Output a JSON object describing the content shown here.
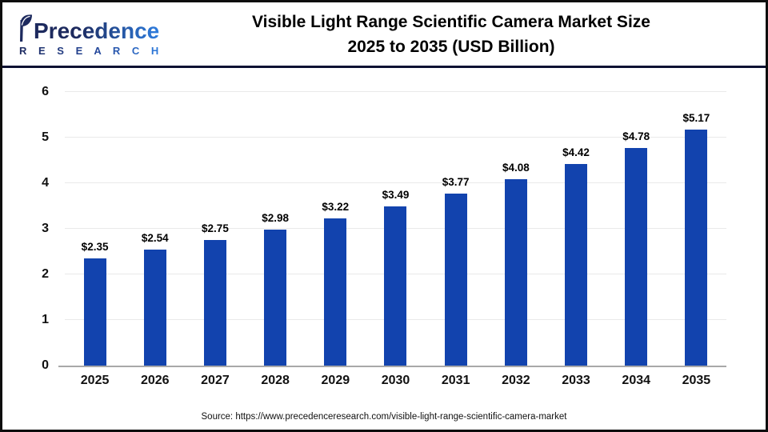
{
  "header": {
    "logo_brand": "Precedence",
    "logo_sub": "R E S E A R C H",
    "title_line1": "Visible Light Range Scientific Camera Market Size",
    "title_line2": "2025 to 2035 (USD Billion)"
  },
  "chart_data": {
    "type": "bar",
    "title": "Visible Light Range Scientific Camera Market Size 2025 to 2035 (USD Billion)",
    "categories": [
      "2025",
      "2026",
      "2027",
      "2028",
      "2029",
      "2030",
      "2031",
      "2032",
      "2033",
      "2034",
      "2035"
    ],
    "values": [
      2.35,
      2.54,
      2.75,
      2.98,
      3.22,
      3.49,
      3.77,
      4.08,
      4.42,
      4.78,
      5.17
    ],
    "value_labels": [
      "$2.35",
      "$2.54",
      "$2.75",
      "$2.98",
      "$3.22",
      "$3.49",
      "$3.77",
      "$4.08",
      "$4.42",
      "$4.78",
      "$5.17"
    ],
    "xlabel": "",
    "ylabel": "",
    "ylim": [
      0,
      6
    ],
    "yticks": [
      0,
      1,
      2,
      3,
      4,
      5,
      6
    ],
    "grid": true,
    "legend": "none",
    "bar_color": "#1243ae"
  },
  "footer": {
    "source": "Source: https://www.precedenceresearch.com/visible-light-range-scientific-camera-market"
  },
  "colors": {
    "bar": "#1243ae",
    "header_separator": "#0d1233",
    "outer_border": "#0d0d0d",
    "grid_line": "#e9e9e9",
    "axis_line": "#a8a8a8",
    "logo_dark": "#1d2a5e",
    "logo_light": "#2e7ddf"
  }
}
